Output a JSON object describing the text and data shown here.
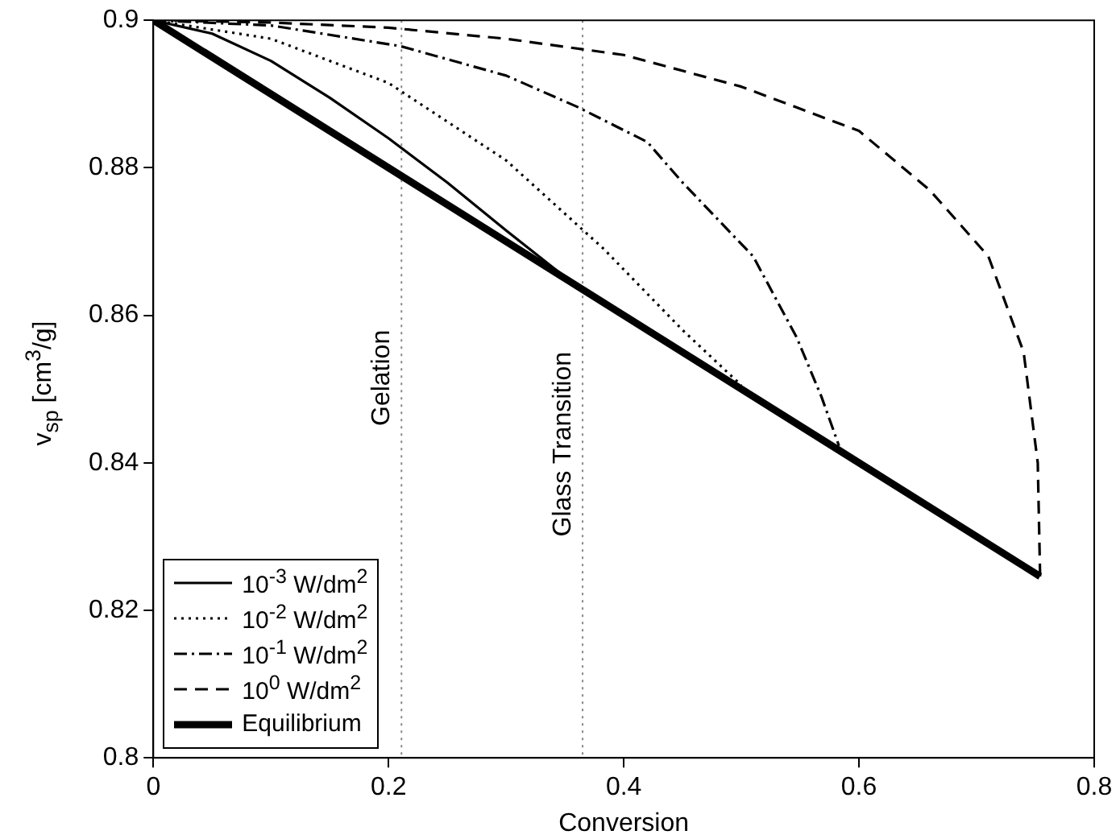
{
  "chart_data": {
    "type": "line",
    "xlabel": "Conversion",
    "ylabel": "v$_{sp}$ [cm$^{3}$/g]",
    "xlim": [
      0,
      0.8
    ],
    "xticks": [
      0,
      0.2,
      0.4,
      0.6,
      0.8
    ],
    "ylim": [
      0.8,
      0.9
    ],
    "yticks": [
      0.8,
      0.82,
      0.84,
      0.86,
      0.88,
      0.9
    ],
    "grid": false,
    "legend": "bottom left",
    "marker": "none",
    "series": [
      {
        "name": "10$^{-3}$ W/dm$^{2}$",
        "color": "#000000",
        "line_style": "solid",
        "x": [
          0,
          0.05,
          0.1,
          0.15,
          0.2,
          0.25,
          0.3,
          0.35,
          0.4
        ],
        "values": [
          0.9,
          0.8982,
          0.8945,
          0.8895,
          0.884,
          0.878,
          0.8715,
          0.8652,
          0.86
        ]
      },
      {
        "name": "10$^{-2}$ W/dm$^{2}$",
        "color": "#000000",
        "line_style": "dotted",
        "x": [
          0,
          0.1,
          0.2,
          0.3,
          0.383,
          0.45,
          0.5
        ],
        "values": [
          0.9,
          0.8975,
          0.8915,
          0.881,
          0.869,
          0.858,
          0.8505
        ]
      },
      {
        "name": "10$^{-1}$ W/dm$^{2}$",
        "color": "#000000",
        "line_style": "dashdot",
        "x": [
          0,
          0.1,
          0.21,
          0.3,
          0.36,
          0.42,
          0.45,
          0.51,
          0.547,
          0.568,
          0.583
        ],
        "values": [
          0.9,
          0.8993,
          0.8965,
          0.8925,
          0.8883,
          0.8835,
          0.878,
          0.868,
          0.857,
          0.849,
          0.8423
        ]
      },
      {
        "name": "10$^{0}$ W/dm$^{2}$",
        "color": "#000000",
        "line_style": "dashed",
        "x": [
          0,
          0.1,
          0.2,
          0.3,
          0.4,
          0.5,
          0.6,
          0.66,
          0.71,
          0.74,
          0.752,
          0.754
        ],
        "values": [
          0.9,
          0.8997,
          0.899,
          0.8975,
          0.8953,
          0.891,
          0.885,
          0.877,
          0.868,
          0.855,
          0.84,
          0.8246
        ]
      },
      {
        "name": "Equilibrium",
        "color": "#000000",
        "line_style": "solid",
        "x": [
          0,
          0.754
        ],
        "values": [
          0.9,
          0.8246
        ]
      }
    ],
    "ref_lines": [
      {
        "axis": "x",
        "value": 0.211,
        "label": "Gelation",
        "color": "#888888",
        "line_style": "dotted"
      },
      {
        "axis": "x",
        "value": 0.365,
        "label": "Glass Transition",
        "color": "#888888",
        "line_style": "dotted"
      }
    ]
  }
}
